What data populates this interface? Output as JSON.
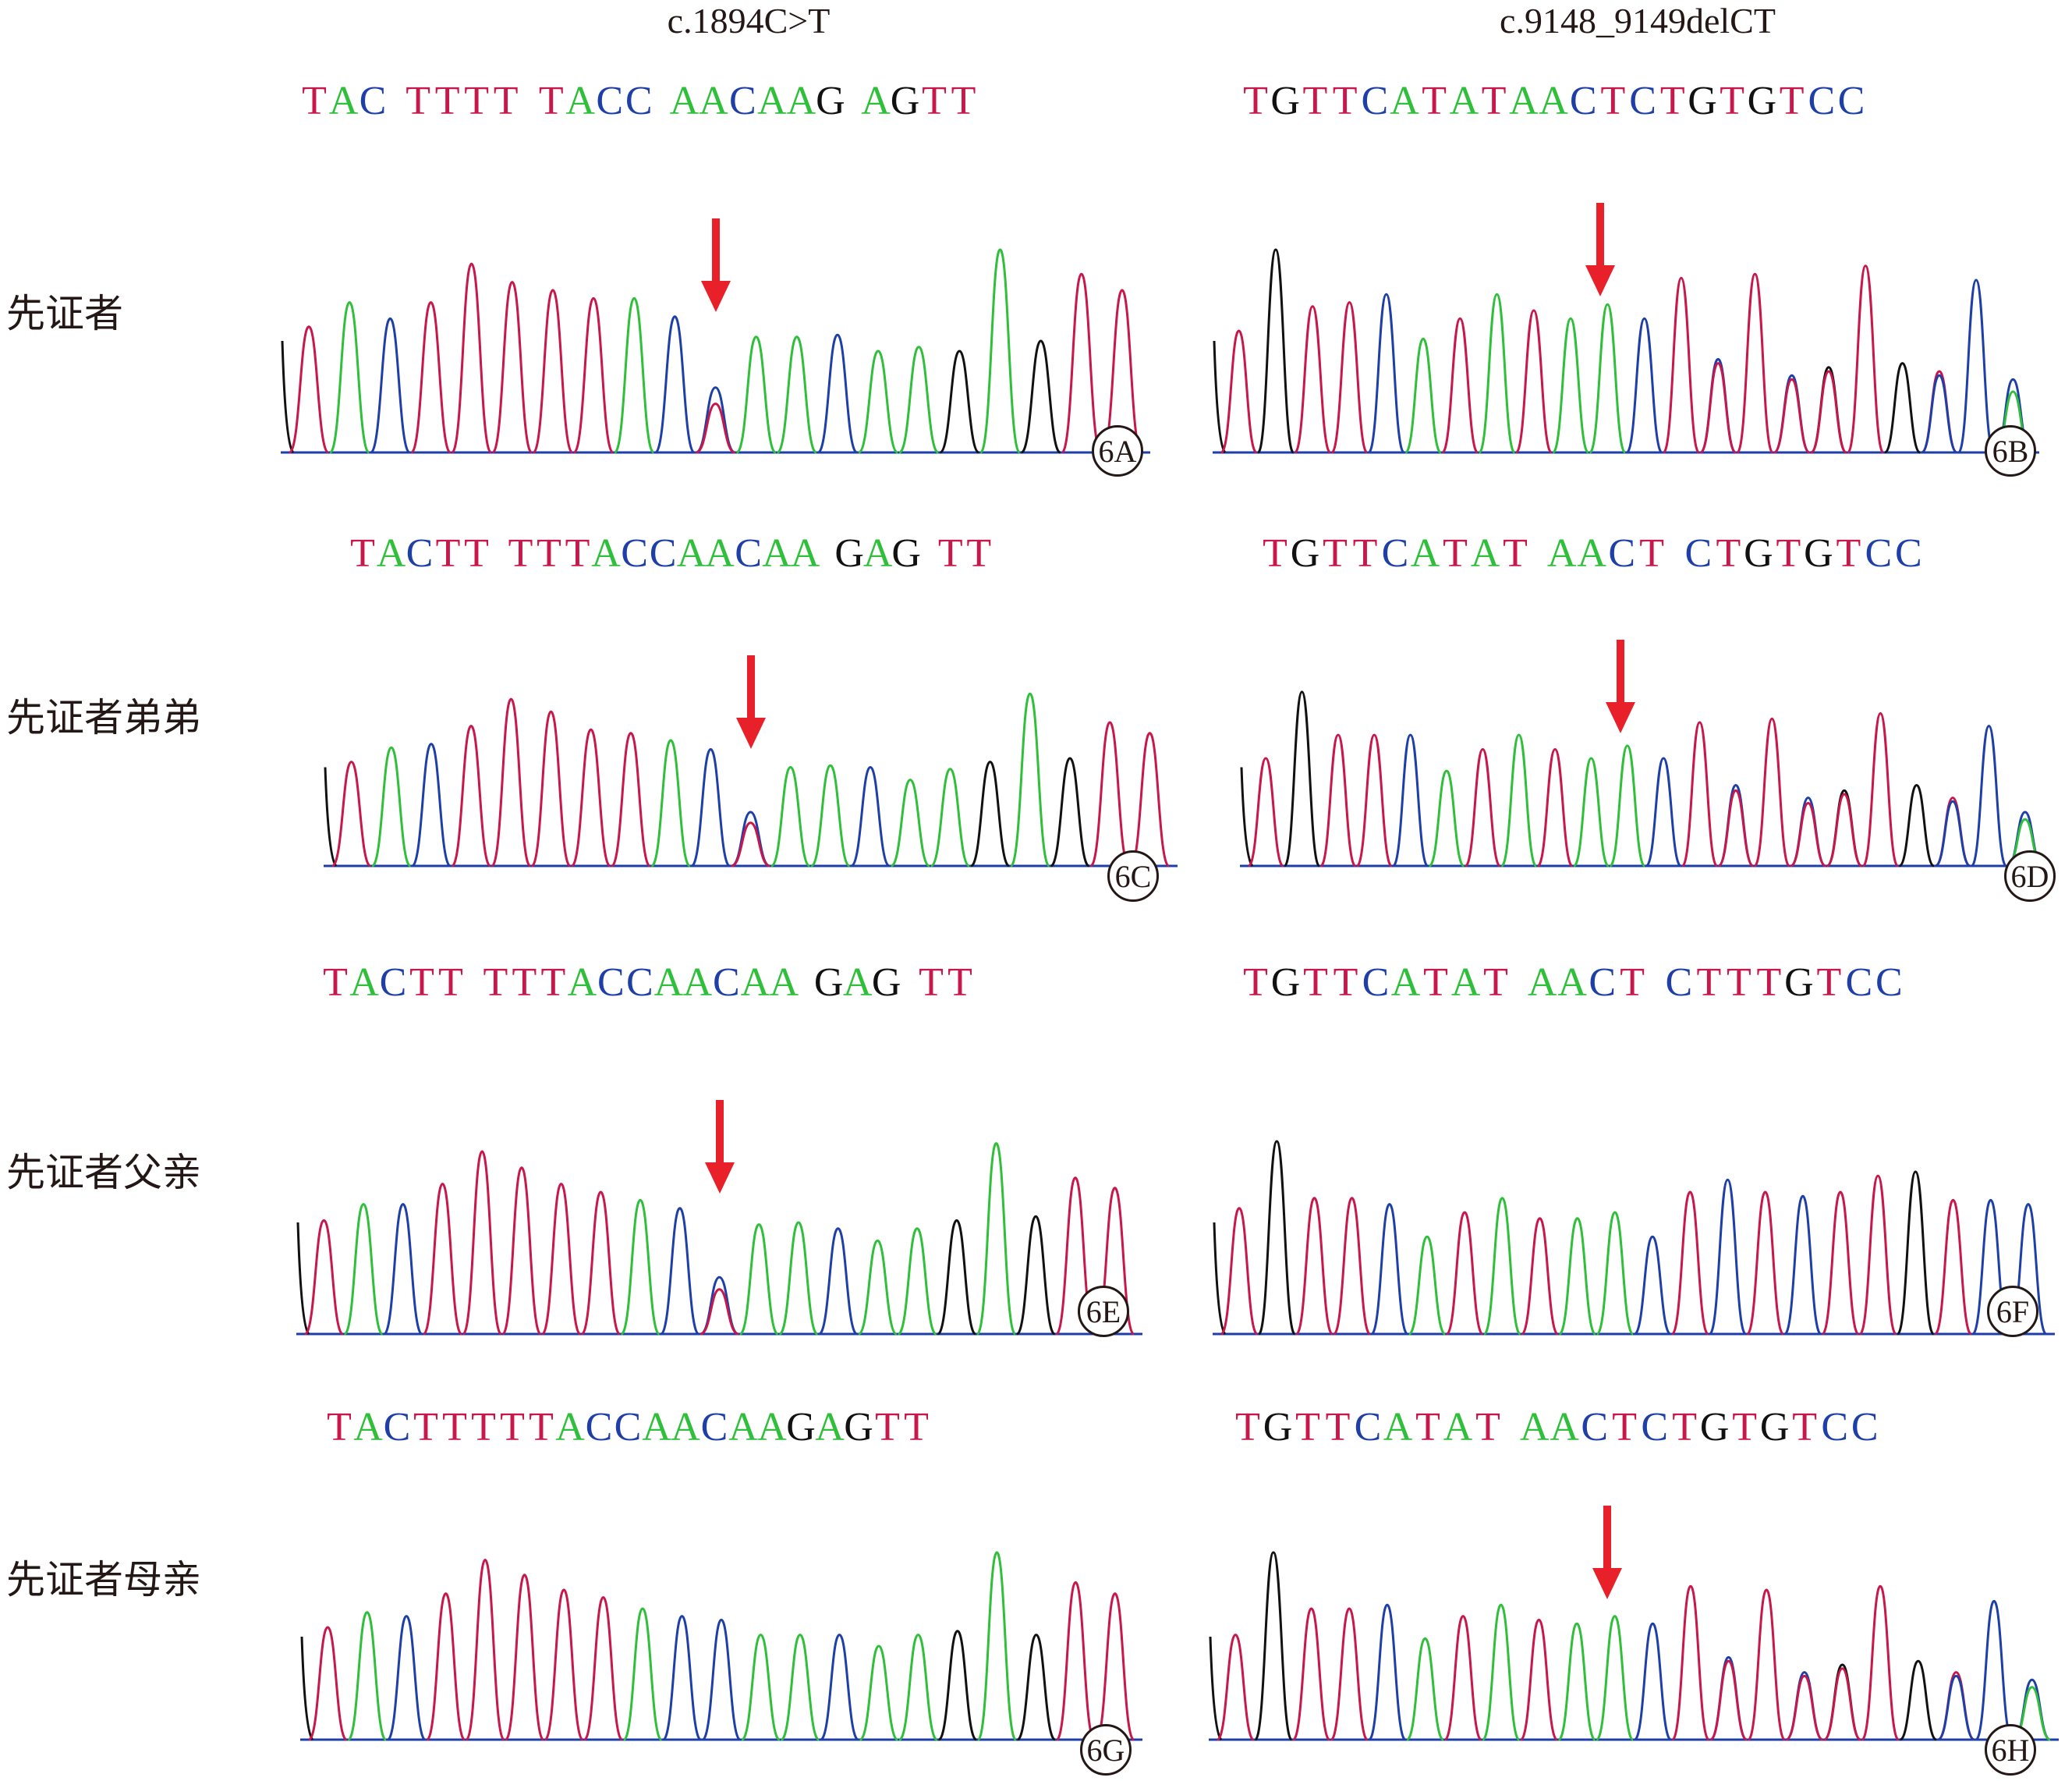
{
  "colors": {
    "A": "#2fbf3a",
    "C": "#1f3fa8",
    "G": "#111111",
    "T": "#c8174b",
    "arrow": "#e8202a",
    "baseline": "#1f3fa8"
  },
  "columns": {
    "left_title": "c.1894C>T",
    "right_title": "c.9148_9149delCT"
  },
  "rows": [
    {
      "label": "先证者"
    },
    {
      "label": "先证者弟弟"
    },
    {
      "label": "先证者父亲"
    },
    {
      "label": "先证者母亲"
    }
  ],
  "panels": [
    {
      "id": "6A",
      "seq": "TAC TTTT TACC AACAAG AGTT",
      "arrow": true,
      "peaks": [
        [
          "T",
          0.62
        ],
        [
          "A",
          0.74
        ],
        [
          "C",
          0.66
        ],
        [
          "T",
          0.74
        ],
        [
          "T",
          0.93
        ],
        [
          "T",
          0.84
        ],
        [
          "T",
          0.8
        ],
        [
          "T",
          0.76
        ],
        [
          "A",
          0.76
        ],
        [
          "C",
          0.67
        ],
        [
          "C",
          0.32,
          "T",
          0.24
        ],
        [
          "A",
          0.57
        ],
        [
          "A",
          0.57
        ],
        [
          "C",
          0.58
        ],
        [
          "A",
          0.5
        ],
        [
          "A",
          0.52
        ],
        [
          "G",
          0.5
        ],
        [
          "A",
          1.0
        ],
        [
          "G",
          0.55
        ],
        [
          "T",
          0.88
        ],
        [
          "T",
          0.8
        ]
      ]
    },
    {
      "id": "6B",
      "seq": "TGTTCATATAACTCTGTGTCC",
      "arrow": true,
      "peaks": [
        [
          "T",
          0.6
        ],
        [
          "G",
          1.0
        ],
        [
          "T",
          0.72
        ],
        [
          "T",
          0.74
        ],
        [
          "C",
          0.78
        ],
        [
          "A",
          0.56
        ],
        [
          "T",
          0.66
        ],
        [
          "A",
          0.78
        ],
        [
          "T",
          0.7
        ],
        [
          "A",
          0.66
        ],
        [
          "A",
          0.73
        ],
        [
          "C",
          0.66
        ],
        [
          "T",
          0.86
        ],
        [
          "C",
          0.46,
          "T",
          0.44
        ],
        [
          "T",
          0.88
        ],
        [
          "C",
          0.38,
          "T",
          0.36
        ],
        [
          "G",
          0.42,
          "T",
          0.4
        ],
        [
          "T",
          0.92
        ],
        [
          "G",
          0.44
        ],
        [
          "T",
          0.4,
          "C",
          0.38
        ],
        [
          "C",
          0.85
        ],
        [
          "C",
          0.36,
          "A",
          0.3
        ]
      ]
    },
    {
      "id": "6C",
      "seq": "TACTT TTTACCAACAA GAG TT",
      "arrow": true,
      "peaks": [
        [
          "T",
          0.58
        ],
        [
          "A",
          0.66
        ],
        [
          "C",
          0.68
        ],
        [
          "T",
          0.78
        ],
        [
          "T",
          0.93
        ],
        [
          "T",
          0.86
        ],
        [
          "T",
          0.76
        ],
        [
          "T",
          0.74
        ],
        [
          "A",
          0.7
        ],
        [
          "C",
          0.65
        ],
        [
          "C",
          0.3,
          "T",
          0.24
        ],
        [
          "A",
          0.55
        ],
        [
          "A",
          0.56
        ],
        [
          "C",
          0.55
        ],
        [
          "A",
          0.48
        ],
        [
          "A",
          0.54
        ],
        [
          "G",
          0.58
        ],
        [
          "A",
          0.96
        ],
        [
          "G",
          0.6
        ],
        [
          "T",
          0.8
        ],
        [
          "T",
          0.74
        ]
      ]
    },
    {
      "id": "6D",
      "seq": "TGTTCATAT AACT CTGTGTCC",
      "arrow": true,
      "peaks": [
        [
          "T",
          0.6
        ],
        [
          "G",
          0.97
        ],
        [
          "T",
          0.73
        ],
        [
          "T",
          0.73
        ],
        [
          "C",
          0.73
        ],
        [
          "A",
          0.53
        ],
        [
          "T",
          0.65
        ],
        [
          "A",
          0.73
        ],
        [
          "T",
          0.65
        ],
        [
          "A",
          0.6
        ],
        [
          "A",
          0.67
        ],
        [
          "C",
          0.6
        ],
        [
          "T",
          0.8
        ],
        [
          "C",
          0.45,
          "T",
          0.42
        ],
        [
          "T",
          0.82
        ],
        [
          "C",
          0.38,
          "T",
          0.35
        ],
        [
          "G",
          0.42,
          "T",
          0.4
        ],
        [
          "T",
          0.85
        ],
        [
          "G",
          0.45
        ],
        [
          "T",
          0.38,
          "C",
          0.36
        ],
        [
          "C",
          0.78
        ],
        [
          "C",
          0.3,
          "A",
          0.26
        ]
      ]
    },
    {
      "id": "6E",
      "seq": "TACTT TTTACCAACAA GAG TT",
      "arrow": true,
      "peaks": [
        [
          "T",
          0.56
        ],
        [
          "A",
          0.64
        ],
        [
          "C",
          0.64
        ],
        [
          "T",
          0.74
        ],
        [
          "T",
          0.9
        ],
        [
          "T",
          0.82
        ],
        [
          "T",
          0.74
        ],
        [
          "T",
          0.7
        ],
        [
          "A",
          0.66
        ],
        [
          "C",
          0.62
        ],
        [
          "C",
          0.28,
          "T",
          0.22
        ],
        [
          "A",
          0.54
        ],
        [
          "A",
          0.55
        ],
        [
          "C",
          0.52
        ],
        [
          "A",
          0.46
        ],
        [
          "A",
          0.52
        ],
        [
          "G",
          0.56
        ],
        [
          "A",
          0.94
        ],
        [
          "G",
          0.58
        ],
        [
          "T",
          0.77
        ],
        [
          "T",
          0.72
        ]
      ]
    },
    {
      "id": "6F",
      "seq": "TGTTCATAT AACT CTTTGTCC",
      "arrow": false,
      "peaks": [
        [
          "T",
          0.62
        ],
        [
          "G",
          0.95
        ],
        [
          "T",
          0.67
        ],
        [
          "T",
          0.67
        ],
        [
          "C",
          0.64
        ],
        [
          "A",
          0.48
        ],
        [
          "T",
          0.6
        ],
        [
          "A",
          0.67
        ],
        [
          "T",
          0.57
        ],
        [
          "A",
          0.57
        ],
        [
          "A",
          0.6
        ],
        [
          "C",
          0.48
        ],
        [
          "T",
          0.7
        ],
        [
          "C",
          0.76
        ],
        [
          "T",
          0.7
        ],
        [
          "C",
          0.68
        ],
        [
          "T",
          0.7
        ],
        [
          "T",
          0.78
        ],
        [
          "G",
          0.8
        ],
        [
          "T",
          0.66
        ],
        [
          "C",
          0.66
        ],
        [
          "C",
          0.64
        ]
      ]
    },
    {
      "id": "6G",
      "seq": "TACTTTTTACCAACAAGAGTT",
      "arrow": false,
      "peaks": [
        [
          "T",
          0.6
        ],
        [
          "A",
          0.68
        ],
        [
          "C",
          0.66
        ],
        [
          "T",
          0.78
        ],
        [
          "T",
          0.96
        ],
        [
          "T",
          0.88
        ],
        [
          "T",
          0.8
        ],
        [
          "T",
          0.76
        ],
        [
          "A",
          0.7
        ],
        [
          "C",
          0.66
        ],
        [
          "C",
          0.64
        ],
        [
          "A",
          0.56
        ],
        [
          "A",
          0.56
        ],
        [
          "C",
          0.56
        ],
        [
          "A",
          0.5
        ],
        [
          "A",
          0.56
        ],
        [
          "G",
          0.58
        ],
        [
          "A",
          1.0
        ],
        [
          "G",
          0.56
        ],
        [
          "T",
          0.84
        ],
        [
          "T",
          0.78
        ]
      ]
    },
    {
      "id": "6H",
      "seq": "TGTTCATAT AACTCTGTGTCC",
      "arrow": true,
      "peaks": [
        [
          "T",
          0.56
        ],
        [
          "G",
          1.0
        ],
        [
          "T",
          0.7
        ],
        [
          "T",
          0.7
        ],
        [
          "C",
          0.72
        ],
        [
          "A",
          0.54
        ],
        [
          "T",
          0.66
        ],
        [
          "A",
          0.72
        ],
        [
          "T",
          0.64
        ],
        [
          "A",
          0.62
        ],
        [
          "A",
          0.66
        ],
        [
          "C",
          0.62
        ],
        [
          "T",
          0.82
        ],
        [
          "C",
          0.44,
          "T",
          0.42
        ],
        [
          "T",
          0.8
        ],
        [
          "C",
          0.36,
          "T",
          0.34
        ],
        [
          "G",
          0.4,
          "T",
          0.38
        ],
        [
          "T",
          0.82
        ],
        [
          "G",
          0.42
        ],
        [
          "T",
          0.36,
          "C",
          0.34
        ],
        [
          "C",
          0.74
        ],
        [
          "C",
          0.32,
          "A",
          0.28
        ]
      ]
    }
  ]
}
